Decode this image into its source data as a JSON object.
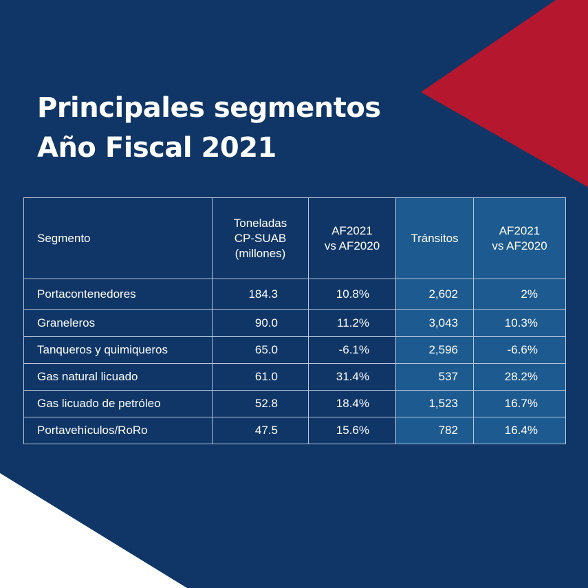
{
  "title": {
    "line1": "Principales segmentos",
    "line2": "Año Fiscal 2021"
  },
  "colors": {
    "background": "#0f3666",
    "accent_red": "#b5172f",
    "highlight_column": "#1d5a8f",
    "white": "#ffffff"
  },
  "chart_data": {
    "type": "table",
    "columns": [
      {
        "key": "segmento",
        "label_lines": [
          "Segmento"
        ]
      },
      {
        "key": "toneladas",
        "label_lines": [
          "Toneladas",
          "CP-SUAB",
          "(millones)"
        ]
      },
      {
        "key": "ton_change",
        "label_lines": [
          "AF2021",
          "vs AF2020"
        ]
      },
      {
        "key": "transitos",
        "label_lines": [
          "Tránsitos"
        ]
      },
      {
        "key": "trans_change",
        "label_lines": [
          "AF2021",
          "vs AF2020"
        ]
      }
    ],
    "rows": [
      {
        "segmento": "Portacontenedores",
        "toneladas": "184.3",
        "ton_change": "10.8%",
        "transitos": "2,602",
        "trans_change": "2%"
      },
      {
        "segmento": "Graneleros",
        "toneladas": "90.0",
        "ton_change": "11.2%",
        "transitos": "3,043",
        "trans_change": "10.3%"
      },
      {
        "segmento": "Tanqueros y quimiqueros",
        "toneladas": "65.0",
        "ton_change": "-6.1%",
        "transitos": "2,596",
        "trans_change": "-6.6%"
      },
      {
        "segmento": "Gas natural licuado",
        "toneladas": "61.0",
        "ton_change": "31.4%",
        "transitos": "537",
        "trans_change": "28.2%"
      },
      {
        "segmento": "Gas licuado de petróleo",
        "toneladas": "52.8",
        "ton_change": "18.4%",
        "transitos": "1,523",
        "trans_change": "16.7%"
      },
      {
        "segmento": "Portavehículos/RoRo",
        "toneladas": "47.5",
        "ton_change": "15.6%",
        "transitos": "782",
        "trans_change": "16.4%"
      }
    ]
  }
}
